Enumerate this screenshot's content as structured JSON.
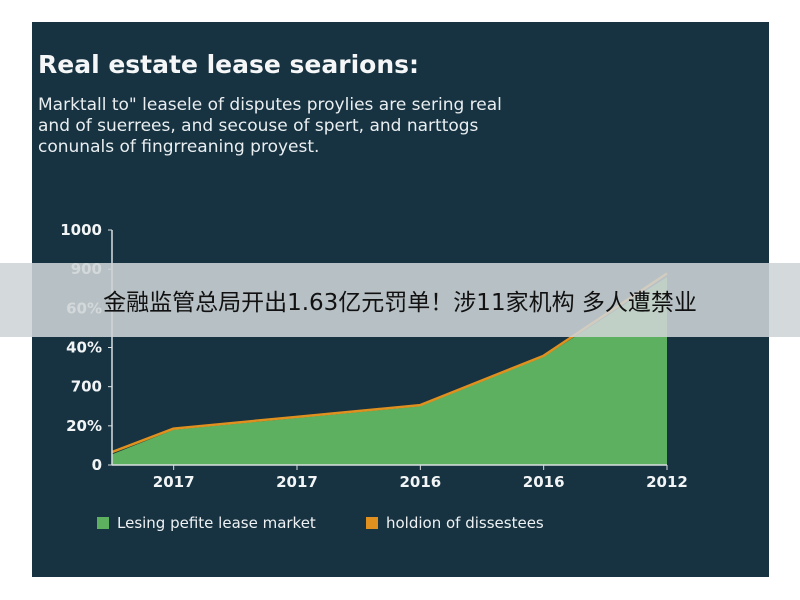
{
  "chart_data": {
    "type": "area",
    "title": "Real estate lease searions:",
    "subtitle_lines": [
      "Marktall to\" leasele of disputes proylies are sering real",
      "and of suerrees, and secouse of spert, and narttogs",
      "conunals of fingrreaning proyest."
    ],
    "x_tick_labels": [
      "2017",
      "2017",
      "2016",
      "2016",
      "2012"
    ],
    "y_tick_labels": [
      "1000",
      "900",
      "60%",
      "40%",
      "700",
      "20%",
      "0"
    ],
    "ylim": [
      0,
      1000
    ],
    "grid": false,
    "series": [
      {
        "name": "Lesing pefite lease market",
        "kind": "area",
        "color": "#5cb05f",
        "x": [
          0,
          0.5,
          1.5,
          2.5,
          3.5,
          4.5
        ],
        "values": [
          45,
          150,
          200,
          250,
          460,
          800
        ]
      },
      {
        "name": "holdion of dissestees",
        "kind": "line",
        "color": "#e0901e",
        "x": [
          0,
          0.5,
          1.5,
          2.5,
          3.5,
          4.5
        ],
        "values": [
          55,
          155,
          205,
          255,
          465,
          815
        ]
      }
    ],
    "legend_position": "bottom"
  },
  "banner": {
    "text": "金融监管总局开出1.63亿元罚单！涉11家机构 多人遭禁业"
  }
}
